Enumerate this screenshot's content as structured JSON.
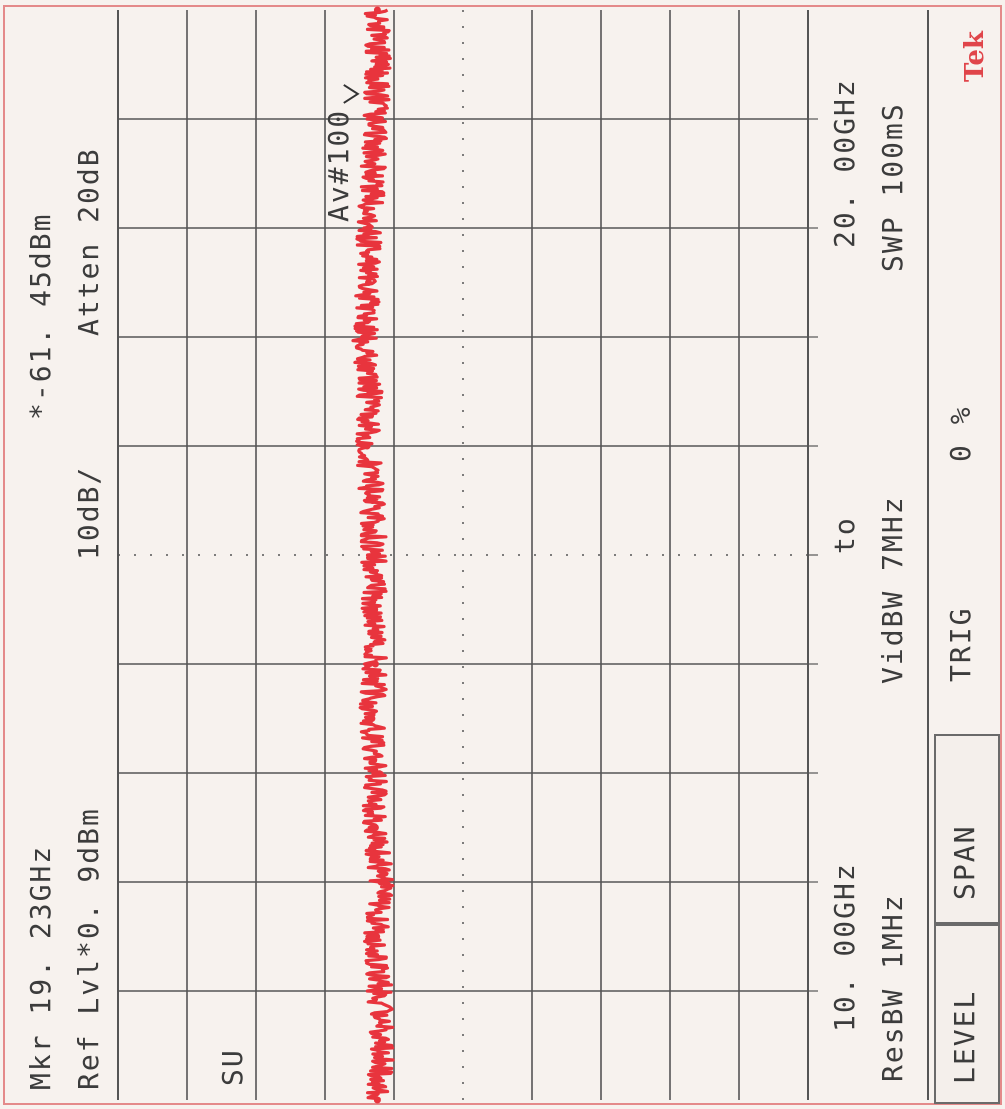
{
  "brand": "Tek",
  "readout": {
    "marker_freq": "Mkr  19. 23GHz",
    "marker_level": "*-61. 45dBm",
    "ref_level": "Ref Lvl*0. 9dBm",
    "scale": "10dB/",
    "atten": "Atten  20dB",
    "avg": "Av#100",
    "su": "SU",
    "start_freq": "10. 00GHz",
    "to": "to",
    "stop_freq": "20. 00GHz",
    "res_bw": "ResBW 1MHz",
    "vid_bw": "VidBW 7MHz",
    "swp": "SWP 100mS",
    "trig": "TRIG",
    "trig_value": "0 %"
  },
  "softkeys": {
    "level": "LEVEL",
    "span": "SPAN"
  },
  "colors": {
    "trace": "#e8343d",
    "grid": "#555555",
    "background": "#f7f2ee",
    "brand": "#e0454a"
  },
  "chart_data": {
    "type": "line",
    "title": "",
    "xlabel": "",
    "ylabel": "",
    "x_unit": "GHz",
    "y_unit": "dBm",
    "xlim": [
      10.0,
      20.0
    ],
    "ylim": [
      -99.1,
      0.9
    ],
    "y_per_division": 10,
    "x_divisions": 10,
    "y_divisions": 10,
    "grid": true,
    "series": [
      {
        "x": [
          10.0,
          10.5,
          11.0,
          11.5,
          12.0,
          12.5,
          13.0,
          13.5,
          14.0,
          14.5,
          15.0,
          15.5,
          16.0,
          16.5,
          17.0,
          17.5,
          18.0,
          18.5,
          19.0,
          19.5,
          20.0
        ],
        "values": [
          -61.5,
          -60.8,
          -61.2,
          -61.6,
          -61.0,
          -61.8,
          -61.9,
          -62.3,
          -61.8,
          -61.9,
          -62.0,
          -62.2,
          -63.0,
          -62.6,
          -63.3,
          -62.8,
          -62.7,
          -62.1,
          -61.7,
          -61.4,
          -61.5
        ]
      }
    ],
    "marker": {
      "x": 19.23,
      "y": -61.45
    }
  }
}
